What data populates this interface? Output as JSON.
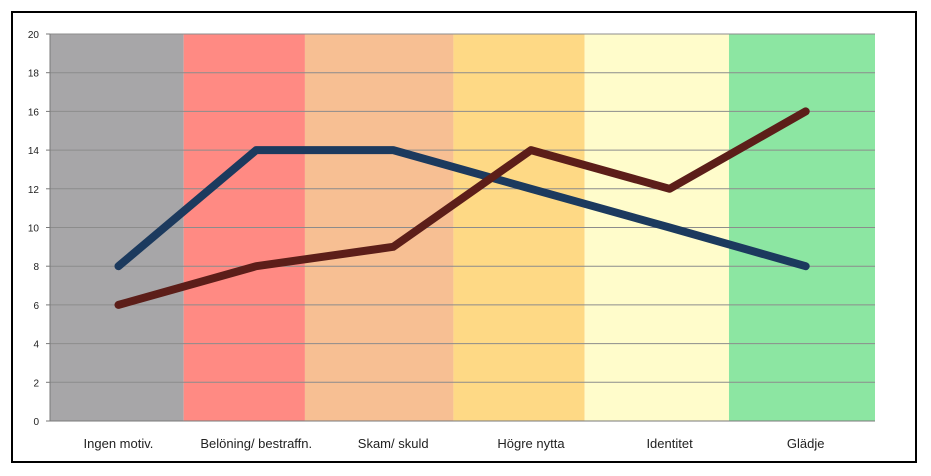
{
  "chart_data": {
    "type": "line",
    "title": "",
    "xlabel": "",
    "ylabel": "",
    "ylim": [
      0,
      20
    ],
    "y_ticks": [
      "0",
      "2",
      "4",
      "6",
      "8",
      "10",
      "12",
      "14",
      "16",
      "18",
      "20"
    ],
    "grid": true,
    "legend": "none",
    "categories": [
      "Ingen motiv.",
      "Belöning/ bestraffn.",
      "Skam/ skuld",
      "Högre nytta",
      "Identitet",
      "Glädje"
    ],
    "background_bands": [
      {
        "category": "Ingen motiv.",
        "color": "#a7a6a8"
      },
      {
        "category": "Belöning/ bestraffn.",
        "color": "#ff8a83"
      },
      {
        "category": "Skam/ skuld",
        "color": "#f7bf93"
      },
      {
        "category": "Högre nytta",
        "color": "#fed985"
      },
      {
        "category": "Identitet",
        "color": "#fffccb"
      },
      {
        "category": "Glädje",
        "color": "#8ce6a2"
      }
    ],
    "series": [
      {
        "color": "#1c3a5e",
        "values": [
          8,
          14,
          14,
          12,
          10,
          8
        ]
      },
      {
        "color": "#5c1e19",
        "values": [
          6,
          8,
          9,
          14,
          12,
          16
        ]
      }
    ]
  }
}
